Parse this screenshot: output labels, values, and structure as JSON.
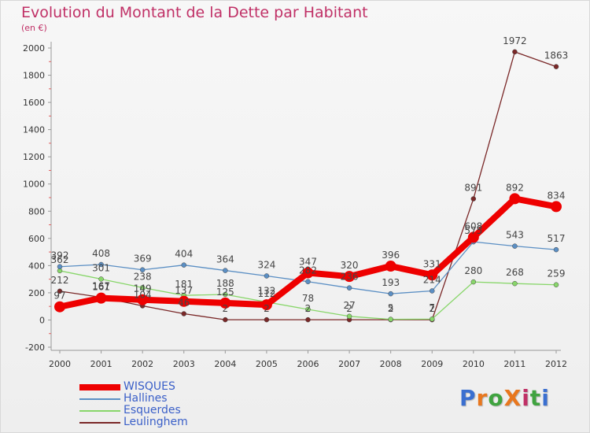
{
  "page": {
    "title": "Evolution du Montant de la Dette par Habitant",
    "unit": "(en €)",
    "logo": {
      "text": "ProXiti",
      "colors": [
        "#3a6fd0",
        "#e8771e",
        "#3fa33f",
        "#e8771e",
        "#c03066",
        "#3fa33f",
        "#3a6fd0"
      ]
    }
  },
  "chart_data": {
    "type": "line",
    "title": "Evolution du Montant de la Dette par Habitant",
    "ylabel": "(en €)",
    "xlabel": "",
    "ylim": [
      -200,
      2000
    ],
    "ytick_step": 200,
    "grid": false,
    "legend_placement": "bottom-left",
    "x": [
      "2000",
      "2001",
      "2002",
      "2003",
      "2004",
      "2005",
      "2006",
      "2007",
      "2008",
      "2009",
      "2010",
      "2011",
      "2012"
    ],
    "series": [
      {
        "name": "WISQUES",
        "color": "#ee0000",
        "values": [
          97,
          161,
          149,
          137,
          125,
          112,
          347,
          320,
          396,
          331,
          608,
          892,
          834
        ]
      },
      {
        "name": "Hallines",
        "color": "#5b8fc4",
        "values": [
          392,
          408,
          369,
          404,
          364,
          324,
          282,
          236,
          193,
          214,
          575,
          543,
          517
        ]
      },
      {
        "name": "Esquerdes",
        "color": "#88d66a",
        "values": [
          362,
          301,
          238,
          181,
          188,
          132,
          78,
          27,
          5,
          7,
          280,
          268,
          259
        ]
      },
      {
        "name": "Leulinghem",
        "color": "#7a2828",
        "values": [
          212,
          167,
          104,
          46,
          2,
          2,
          2,
          2,
          2,
          2,
          891,
          1972,
          1863
        ]
      }
    ]
  }
}
